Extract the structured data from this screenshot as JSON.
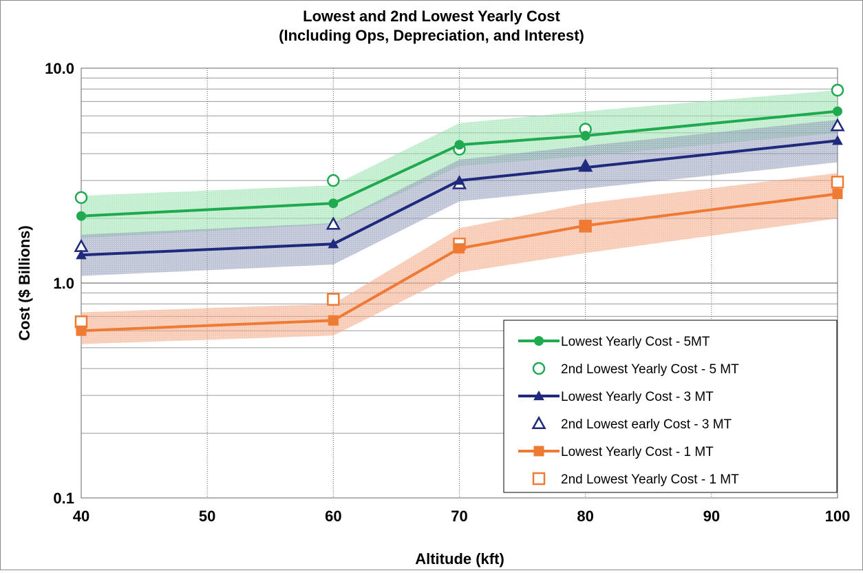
{
  "chart_data": {
    "type": "line",
    "title": "Lowest and 2nd Lowest Yearly Cost",
    "subtitle": "(Including Ops, Depreciation, and Interest)",
    "xlabel": "Altitude (kft)",
    "ylabel": "Cost ($ Billions)",
    "x_scale": "linear",
    "y_scale": "log",
    "xlim": [
      40,
      100
    ],
    "ylim": [
      0.1,
      10.0
    ],
    "xticks": [
      "40",
      "50",
      "60",
      "70",
      "80",
      "90",
      "100"
    ],
    "yticks": [
      "0.1",
      "1.0",
      "10.0"
    ],
    "grid": true,
    "legend_position": "bottom-right",
    "x": [
      40,
      60,
      70,
      80,
      100
    ],
    "series": [
      {
        "name": "Lowest Yearly Cost - 5MT",
        "style": "line",
        "marker": "filled-circle",
        "color": "#1faa4f",
        "values": [
          2.05,
          2.35,
          4.4,
          4.85,
          6.3
        ]
      },
      {
        "name": "2nd Lowest Yearly Cost - 5 MT",
        "style": "markers",
        "marker": "open-circle",
        "color": "#1faa4f",
        "values": [
          2.5,
          3.0,
          4.2,
          5.2,
          7.9
        ]
      },
      {
        "name": "Lowest Yearly Cost - 3 MT",
        "style": "line",
        "marker": "filled-triangle",
        "color": "#1f2a7c",
        "values": [
          1.35,
          1.52,
          3.0,
          3.45,
          4.6
        ]
      },
      {
        "name": "2nd Lowest early Cost - 3 MT",
        "style": "markers",
        "marker": "open-triangle",
        "color": "#1f2a7c",
        "values": [
          1.48,
          1.88,
          2.9,
          3.5,
          5.4
        ]
      },
      {
        "name": "Lowest Yearly Cost - 1 MT",
        "style": "line",
        "marker": "filled-square",
        "color": "#ee7a33",
        "values": [
          0.6,
          0.67,
          1.45,
          1.85,
          2.6
        ]
      },
      {
        "name": "2nd Lowest Yearly Cost - 1 MT",
        "style": "markers",
        "marker": "open-square",
        "color": "#ee7a33",
        "values": [
          0.66,
          0.84,
          1.52,
          1.84,
          2.95
        ]
      }
    ],
    "bands": [
      {
        "color": "#8fe0a8",
        "low": [
          1.62,
          1.88,
          3.5,
          3.9,
          5.0
        ],
        "high": [
          2.55,
          2.85,
          5.55,
          6.3,
          7.9
        ]
      },
      {
        "color": "#8a94b4",
        "low": [
          1.08,
          1.22,
          2.4,
          2.75,
          3.65
        ],
        "high": [
          1.68,
          1.9,
          3.75,
          4.35,
          5.75
        ]
      },
      {
        "color": "#f2a07a",
        "low": [
          0.52,
          0.57,
          1.12,
          1.38,
          2.0
        ],
        "high": [
          0.73,
          0.8,
          1.8,
          2.35,
          3.25
        ]
      }
    ]
  }
}
